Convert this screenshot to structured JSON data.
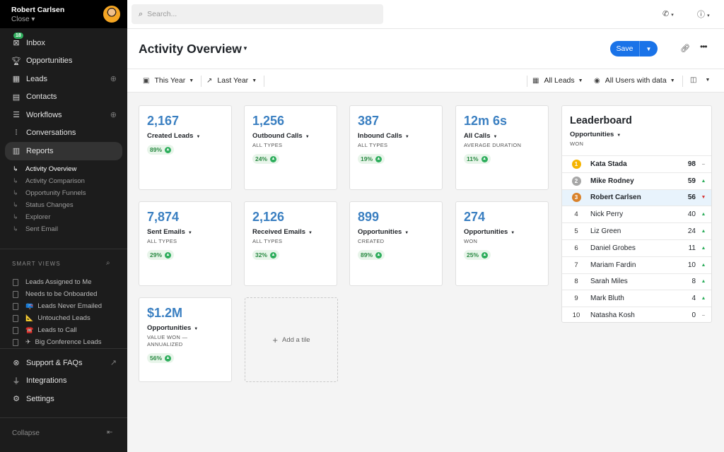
{
  "user": {
    "name": "Robert Carlsen",
    "sub": "Close"
  },
  "sidebar": {
    "inbox_badge": "18",
    "items": [
      {
        "label": "Inbox",
        "icon": "inbox-icon"
      },
      {
        "label": "Opportunities",
        "icon": "trophy-icon"
      },
      {
        "label": "Leads",
        "icon": "building-icon"
      },
      {
        "label": "Contacts",
        "icon": "contact-icon"
      },
      {
        "label": "Workflows",
        "icon": "list-icon"
      },
      {
        "label": "Conversations",
        "icon": "waveform-icon"
      },
      {
        "label": "Reports",
        "icon": "chart-icon"
      }
    ],
    "report_subs": [
      "Activity Overview",
      "Activity Comparison",
      "Opportunity Funnels",
      "Status Changes",
      "Explorer",
      "Sent Email"
    ],
    "smart_views_title": "SMART VIEWS",
    "smart_views": [
      {
        "label": "Leads Assigned to Me",
        "emoji": ""
      },
      {
        "label": "Needs to be Onboarded",
        "emoji": ""
      },
      {
        "label": "Leads Never Emailed",
        "emoji": "📪"
      },
      {
        "label": "Untouched Leads",
        "emoji": "📐"
      },
      {
        "label": "Leads to Call",
        "emoji": "☎️"
      },
      {
        "label": "Big Conference Leads",
        "emoji": "✈"
      }
    ],
    "bottom": [
      {
        "label": "Support & FAQs",
        "icon": "help-icon"
      },
      {
        "label": "Integrations",
        "icon": "plug-icon"
      },
      {
        "label": "Settings",
        "icon": "gear-icon"
      }
    ],
    "collapse": "Collapse"
  },
  "search": {
    "placeholder": "Search..."
  },
  "header": {
    "title": "Activity Overview",
    "save": "Save"
  },
  "filters": {
    "this_year": "This Year",
    "last_year": "Last Year",
    "all_leads": "All Leads",
    "all_users": "All Users with data"
  },
  "tiles": [
    {
      "value": "2,167",
      "label": "Created Leads",
      "sub": "",
      "pct": "89%"
    },
    {
      "value": "1,256",
      "label": "Outbound Calls",
      "sub": "ALL TYPES",
      "pct": "24%"
    },
    {
      "value": "387",
      "label": "Inbound Calls",
      "sub": "ALL TYPES",
      "pct": "19%"
    },
    {
      "value": "12m 6s",
      "label": "All Calls",
      "sub": "AVERAGE DURATION",
      "pct": "11%"
    },
    {
      "value": "7,874",
      "label": "Sent Emails",
      "sub": "ALL TYPES",
      "pct": "29%"
    },
    {
      "value": "2,126",
      "label": "Received Emails",
      "sub": "ALL TYPES",
      "pct": "32%"
    },
    {
      "value": "899",
      "label": "Opportunities",
      "sub": "CREATED",
      "pct": "89%"
    },
    {
      "value": "274",
      "label": "Opportunities",
      "sub": "WON",
      "pct": "25%"
    },
    {
      "value": "$1.2M",
      "label": "Opportunities",
      "sub": "VALUE WON — ANNUALIZED",
      "pct": "56%"
    }
  ],
  "add_tile": "Add a tile",
  "leaderboard": {
    "title": "Leaderboard",
    "metric": "Opportunities",
    "sub": "WON",
    "rows": [
      {
        "rank": "1",
        "name": "Kata Stada",
        "score": "98",
        "trend": "flat"
      },
      {
        "rank": "2",
        "name": "Mike Rodney",
        "score": "59",
        "trend": "up"
      },
      {
        "rank": "3",
        "name": "Robert Carlsen",
        "score": "56",
        "trend": "down"
      },
      {
        "rank": "4",
        "name": "Nick Perry",
        "score": "40",
        "trend": "up"
      },
      {
        "rank": "5",
        "name": "Liz Green",
        "score": "24",
        "trend": "up"
      },
      {
        "rank": "6",
        "name": "Daniel Grobes",
        "score": "11",
        "trend": "up"
      },
      {
        "rank": "7",
        "name": "Mariam Fardin",
        "score": "10",
        "trend": "up"
      },
      {
        "rank": "8",
        "name": "Sarah Miles",
        "score": "8",
        "trend": "up"
      },
      {
        "rank": "9",
        "name": "Mark Bluth",
        "score": "4",
        "trend": "up"
      },
      {
        "rank": "10",
        "name": "Natasha Kosh",
        "score": "0",
        "trend": "flat"
      }
    ]
  },
  "colors": {
    "accent": "#1a73e8",
    "value_blue": "#3a7fc1",
    "positive": "#2fae5d",
    "negative": "#d63a3a",
    "gold": "#f5b400",
    "silver": "#a6a6a6",
    "bronze": "#d9822b"
  }
}
